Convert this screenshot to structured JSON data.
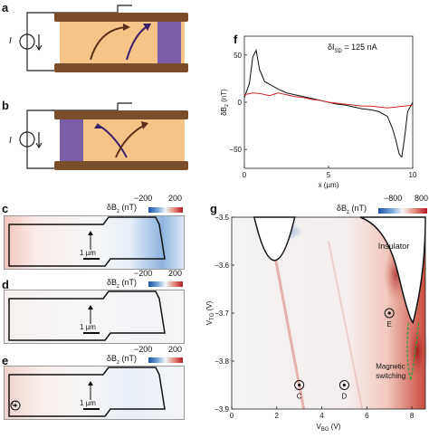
{
  "panels": {
    "a": {
      "label": "a",
      "current_symbol": "I"
    },
    "b": {
      "label": "b",
      "current_symbol": "I"
    },
    "c": {
      "label": "c",
      "cbar_min": "−200",
      "cbar_max": "200",
      "cbar_title": "δB",
      "cbar_sub": "z",
      "cbar_unit": " (nT)",
      "scale": "1 µm"
    },
    "d": {
      "label": "d",
      "cbar_min": "−200",
      "cbar_max": "200",
      "cbar_title": "δB",
      "cbar_sub": "z",
      "cbar_unit": " (nT)",
      "scale": "1 µm"
    },
    "e": {
      "label": "e",
      "cbar_min": "−200",
      "cbar_max": "200",
      "cbar_title": "δB",
      "cbar_sub": "z",
      "cbar_unit": " (nT)",
      "scale": "1 µm",
      "marker": "C"
    },
    "f": {
      "label": "f",
      "annotation_main": "δI",
      "annotation_sub": "SD",
      "annotation_val": " = 125 nA"
    },
    "g": {
      "label": "g",
      "cbar_min": "−800",
      "cbar_max": "800",
      "cbar_title": "δB",
      "cbar_sub": "z",
      "cbar_unit": " (nT)",
      "insulator": "Insulator",
      "magnetic_1": "Magnetic",
      "magnetic_2": "switching",
      "markers": [
        "C",
        "D",
        "E"
      ]
    }
  },
  "chart_data": [
    {
      "type": "line",
      "panel": "f",
      "xlabel": "x (µm)",
      "ylabel": "δB",
      "ylabel_sub": "z",
      "ylabel_unit": " (nT)",
      "xlim": [
        0,
        10
      ],
      "ylim": [
        -70,
        70
      ],
      "xticks": [
        0,
        5,
        10
      ],
      "yticks": [
        50,
        0,
        -50
      ],
      "series": [
        {
          "color": "#111111",
          "x": [
            0,
            0.3,
            0.5,
            0.7,
            0.9,
            1.2,
            1.6,
            2.0,
            2.5,
            3.0,
            3.5,
            4.0,
            4.5,
            5.0,
            5.5,
            6.0,
            6.5,
            7.0,
            7.5,
            8.0,
            8.5,
            8.8,
            9.0,
            9.2,
            9.35,
            9.5,
            9.7,
            10
          ],
          "y": [
            5,
            20,
            48,
            55,
            35,
            22,
            18,
            14,
            10,
            8,
            6,
            4,
            2,
            0,
            -2,
            -3,
            -5,
            -7,
            -8,
            -10,
            -15,
            -28,
            -40,
            -55,
            -58,
            -40,
            -10,
            0
          ]
        },
        {
          "color": "#d62728",
          "x": [
            0,
            0.5,
            1.0,
            1.5,
            2.0,
            2.5,
            3.0,
            3.5,
            4.0,
            4.5,
            5.0,
            5.5,
            6.0,
            6.5,
            7.0,
            7.5,
            8.0,
            8.5,
            9.0,
            9.5,
            10
          ],
          "y": [
            8,
            10,
            9,
            7,
            10,
            8,
            6,
            5,
            3,
            2,
            0,
            -1,
            -2,
            -3,
            -4,
            -4,
            -5,
            -6,
            -5,
            -4,
            -3
          ]
        }
      ]
    },
    {
      "type": "heatmap",
      "panel": "g",
      "xlabel": "V",
      "xlabel_sub": "BG",
      "xlabel_unit": " (V)",
      "ylabel": "V",
      "ylabel_sub": "TG",
      "ylabel_unit": " (V)",
      "xlim": [
        0,
        8.6
      ],
      "ylim": [
        -3.9,
        -3.5
      ],
      "xticks": [
        0,
        2,
        4,
        6,
        8
      ],
      "yticks": [
        -3.5,
        -3.6,
        -3.7,
        -3.8,
        -3.9
      ],
      "ytick_labels": [
        "−3.5",
        "−3.6",
        "−3.7",
        "−3.8",
        "−3.9"
      ],
      "markers": [
        {
          "name": "C",
          "x": 3.0,
          "y": -3.85
        },
        {
          "name": "D",
          "x": 5.0,
          "y": -3.85
        },
        {
          "name": "E",
          "x": 7.0,
          "y": -3.7
        }
      ]
    }
  ]
}
